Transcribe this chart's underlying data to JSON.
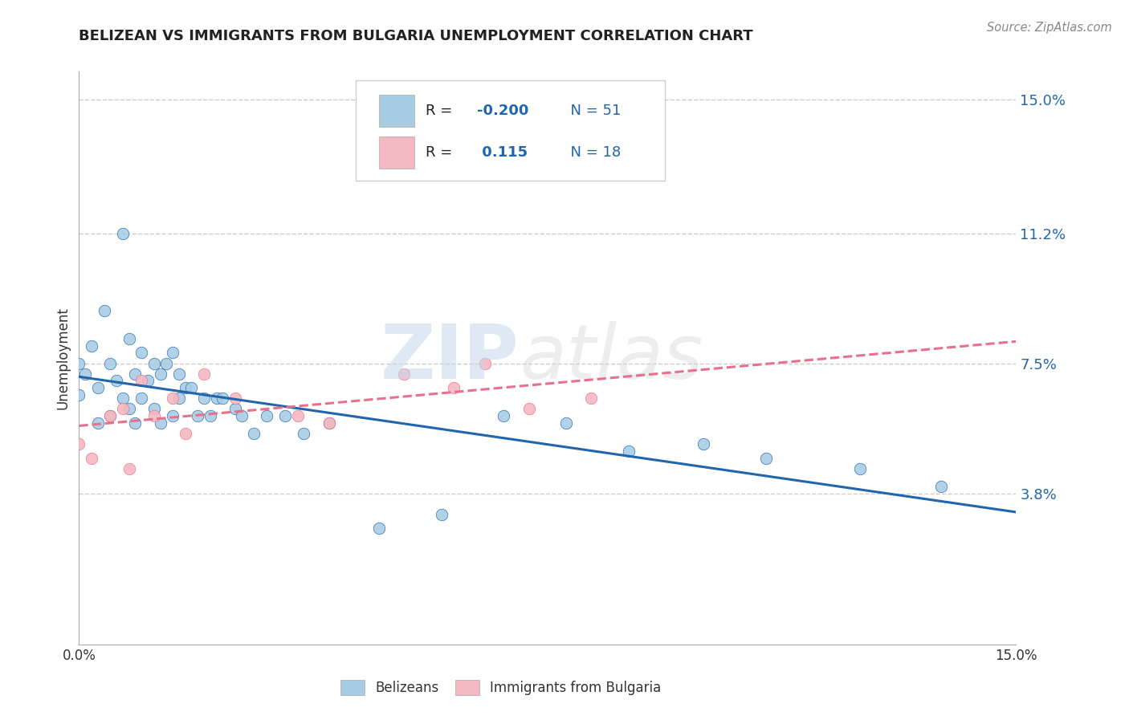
{
  "title": "BELIZEAN VS IMMIGRANTS FROM BULGARIA UNEMPLOYMENT CORRELATION CHART",
  "source": "Source: ZipAtlas.com",
  "ylabel": "Unemployment",
  "color_blue": "#a8cce4",
  "color_pink": "#f4b8c1",
  "color_blue_line": "#2166ac",
  "color_pink_line": "#e8708a",
  "background_color": "#ffffff",
  "watermark_color": "#d0dde8",
  "ytick_vals": [
    0.038,
    0.075,
    0.112,
    0.15
  ],
  "ytick_labels": [
    "3.8%",
    "7.5%",
    "11.2%",
    "15.0%"
  ],
  "xtick_vals": [
    0.0,
    0.15
  ],
  "xtick_labels": [
    "0.0%",
    "15.0%"
  ],
  "xlim": [
    0.0,
    0.15
  ],
  "ylim": [
    -0.005,
    0.158
  ],
  "bel_x": [
    0.0,
    0.0,
    0.001,
    0.002,
    0.003,
    0.003,
    0.004,
    0.005,
    0.005,
    0.006,
    0.007,
    0.007,
    0.008,
    0.008,
    0.009,
    0.009,
    0.01,
    0.01,
    0.011,
    0.012,
    0.012,
    0.013,
    0.013,
    0.014,
    0.015,
    0.015,
    0.016,
    0.016,
    0.017,
    0.018,
    0.019,
    0.02,
    0.021,
    0.022,
    0.023,
    0.025,
    0.026,
    0.028,
    0.03,
    0.033,
    0.036,
    0.04,
    0.048,
    0.058,
    0.068,
    0.078,
    0.088,
    0.1,
    0.11,
    0.125,
    0.138
  ],
  "bel_y": [
    0.075,
    0.066,
    0.072,
    0.08,
    0.068,
    0.058,
    0.09,
    0.075,
    0.06,
    0.07,
    0.112,
    0.065,
    0.082,
    0.062,
    0.072,
    0.058,
    0.078,
    0.065,
    0.07,
    0.075,
    0.062,
    0.072,
    0.058,
    0.075,
    0.078,
    0.06,
    0.072,
    0.065,
    0.068,
    0.068,
    0.06,
    0.065,
    0.06,
    0.065,
    0.065,
    0.062,
    0.06,
    0.055,
    0.06,
    0.06,
    0.055,
    0.058,
    0.028,
    0.032,
    0.06,
    0.058,
    0.05,
    0.052,
    0.048,
    0.045,
    0.04
  ],
  "bul_x": [
    0.0,
    0.002,
    0.005,
    0.007,
    0.008,
    0.01,
    0.012,
    0.015,
    0.017,
    0.02,
    0.025,
    0.035,
    0.04,
    0.052,
    0.06,
    0.065,
    0.072,
    0.082
  ],
  "bul_y": [
    0.052,
    0.048,
    0.06,
    0.062,
    0.045,
    0.07,
    0.06,
    0.065,
    0.055,
    0.072,
    0.065,
    0.06,
    0.058,
    0.072,
    0.068,
    0.075,
    0.062,
    0.065
  ]
}
